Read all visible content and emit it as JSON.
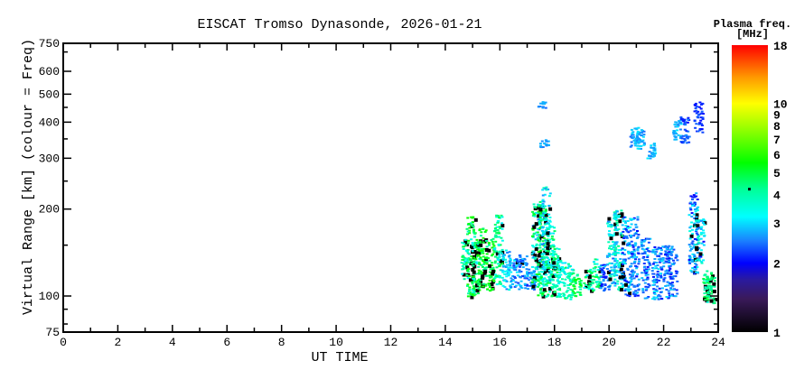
{
  "chart_data": {
    "type": "scatter",
    "title": "EISCAT Tromso Dynasonde, 2026-01-21",
    "xlabel": "UT TIME",
    "ylabel": "Virtual Range [km] (colour = Freq)",
    "xlim": [
      0,
      24
    ],
    "ylim": [
      75,
      750
    ],
    "yscale": "log",
    "xticks": [
      0,
      2,
      4,
      6,
      8,
      10,
      12,
      14,
      16,
      18,
      20,
      22,
      24
    ],
    "yticks": [
      75,
      100,
      200,
      300,
      400,
      500,
      600,
      750
    ],
    "colorbar": {
      "label": "Plasma freq.",
      "units": "[MHz]",
      "range": [
        1,
        18
      ],
      "scale": "log",
      "ticks": [
        1,
        2,
        3,
        4,
        5,
        6,
        7,
        8,
        9,
        10,
        18
      ],
      "marker_value": 4.2,
      "stops": [
        [
          1,
          "#000000"
        ],
        [
          1.4,
          "#3a1a5a"
        ],
        [
          1.7,
          "#2a1aa0"
        ],
        [
          2,
          "#0000ff"
        ],
        [
          2.5,
          "#1a7fff"
        ],
        [
          3.2,
          "#00ffff"
        ],
        [
          4.2,
          "#00ff99"
        ],
        [
          5.5,
          "#00ff00"
        ],
        [
          7.5,
          "#88ff00"
        ],
        [
          10,
          "#ffff00"
        ],
        [
          13,
          "#ff9900"
        ],
        [
          18,
          "#ff0000"
        ]
      ]
    },
    "columns_desc": "[ut_hours, range_min_km, range_max_km, freq_min_mhz, freq_max_mhz, dark_fraction]",
    "columns": [
      [
        14.7,
        115,
        160,
        3.0,
        5.0,
        0.05
      ],
      [
        14.9,
        100,
        190,
        3.5,
        6.0,
        0.15
      ],
      [
        15.1,
        100,
        160,
        3.0,
        6.0,
        0.12
      ],
      [
        15.3,
        105,
        175,
        4.0,
        6.0,
        0.08
      ],
      [
        15.6,
        105,
        160,
        4.0,
        6.0,
        0.08
      ],
      [
        15.9,
        110,
        195,
        3.0,
        5.0,
        0.03
      ],
      [
        16.2,
        105,
        145,
        2.5,
        3.5,
        0.0
      ],
      [
        16.5,
        108,
        135,
        2.2,
        3.2,
        0.02
      ],
      [
        16.8,
        106,
        140,
        2.0,
        3.0,
        0.02
      ],
      [
        17.1,
        105,
        125,
        2.0,
        3.0,
        0.0
      ],
      [
        17.3,
        105,
        210,
        2.2,
        5.5,
        0.1
      ],
      [
        17.5,
        100,
        215,
        3.0,
        6.0,
        0.15
      ],
      [
        17.65,
        110,
        240,
        2.5,
        4.0,
        0.05
      ],
      [
        17.6,
        330,
        350,
        2.4,
        2.8,
        0.0
      ],
      [
        17.5,
        450,
        475,
        2.4,
        2.8,
        0.0
      ],
      [
        17.8,
        100,
        175,
        3.0,
        5.0,
        0.1
      ],
      [
        18.0,
        98,
        150,
        3.0,
        5.0,
        0.05
      ],
      [
        18.2,
        100,
        135,
        3.0,
        4.2,
        0.02
      ],
      [
        18.5,
        98,
        130,
        3.0,
        5.0,
        0.0
      ],
      [
        18.8,
        100,
        120,
        4.0,
        6.0,
        0.0
      ],
      [
        19.2,
        105,
        125,
        3.0,
        5.0,
        0.1
      ],
      [
        19.5,
        105,
        135,
        3.0,
        5.0,
        0.05
      ],
      [
        19.8,
        105,
        130,
        2.0,
        3.0,
        0.0
      ],
      [
        20.05,
        108,
        190,
        2.2,
        4.0,
        0.08
      ],
      [
        20.3,
        105,
        200,
        2.5,
        4.5,
        0.08
      ],
      [
        20.6,
        100,
        190,
        2.0,
        3.5,
        0.03
      ],
      [
        20.9,
        100,
        190,
        2.0,
        3.0,
        0.02
      ],
      [
        20.9,
        330,
        390,
        2.4,
        3.1,
        0.0
      ],
      [
        21.1,
        325,
        385,
        2.4,
        3.1,
        0.0
      ],
      [
        21.3,
        98,
        160,
        2.0,
        3.0,
        0.0
      ],
      [
        21.5,
        300,
        340,
        2.5,
        3.1,
        0.0
      ],
      [
        21.7,
        98,
        150,
        2.0,
        3.2,
        0.0
      ],
      [
        22.0,
        98,
        150,
        2.0,
        3.0,
        0.0
      ],
      [
        22.3,
        100,
        150,
        2.0,
        3.0,
        0.0
      ],
      [
        22.45,
        350,
        410,
        2.4,
        3.1,
        0.0
      ],
      [
        22.75,
        340,
        420,
        2.0,
        2.6,
        0.0
      ],
      [
        23.05,
        120,
        230,
        2.0,
        3.5,
        0.08
      ],
      [
        23.3,
        130,
        190,
        2.0,
        4.0,
        0.1
      ],
      [
        23.25,
        370,
        480,
        2.0,
        2.4,
        0.0
      ],
      [
        23.55,
        95,
        120,
        3.5,
        5.0,
        0.2
      ],
      [
        23.7,
        95,
        125,
        4.0,
        5.0,
        0.2
      ]
    ]
  }
}
